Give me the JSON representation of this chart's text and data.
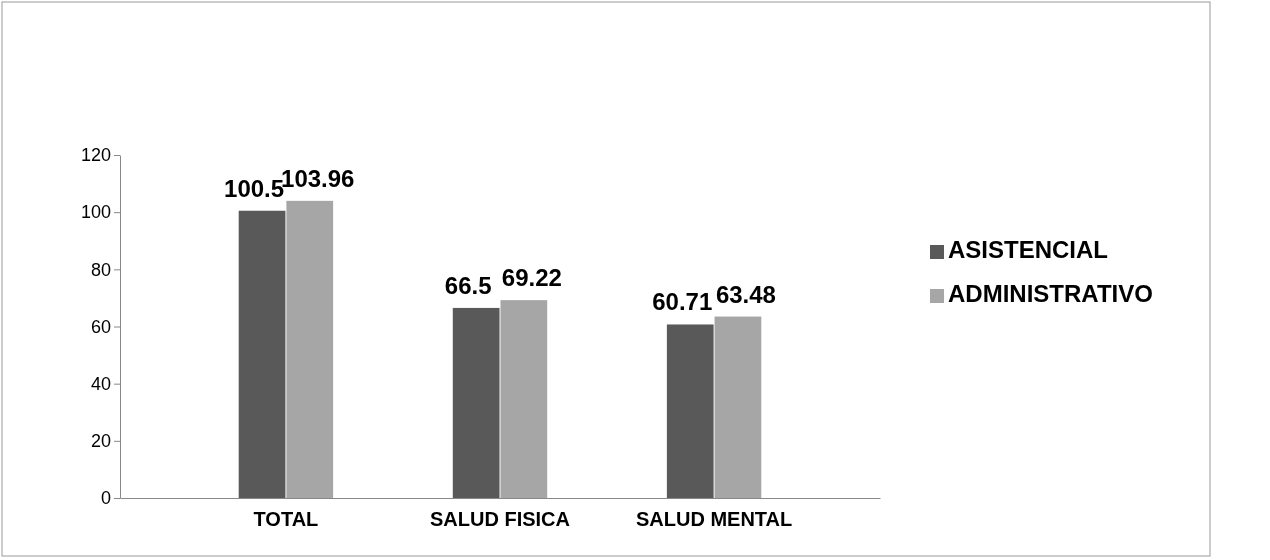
{
  "chart_data": {
    "type": "bar",
    "categories": [
      "TOTAL",
      "SALUD FISICA",
      "SALUD MENTAL"
    ],
    "series": [
      {
        "name": "ASISTENCIAL",
        "color": "#595959",
        "values": [
          100.5,
          66.5,
          60.71
        ]
      },
      {
        "name": "ADMINISTRATIVO",
        "color": "#a6a6a6",
        "values": [
          103.96,
          69.22,
          63.48
        ]
      }
    ],
    "ylim": [
      0,
      120
    ],
    "yticks": [
      0,
      20,
      40,
      60,
      80,
      100,
      120
    ],
    "grid": false,
    "legend": "right",
    "data_labels": true
  }
}
